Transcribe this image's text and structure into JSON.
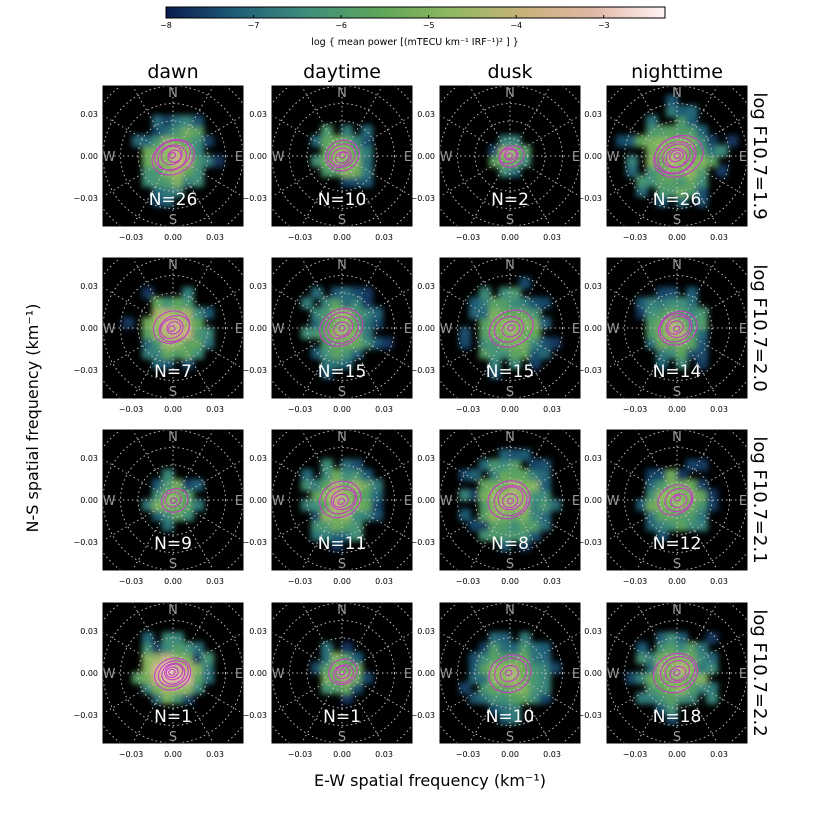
{
  "colorbar": {
    "label": "log { mean power [(mTECU km⁻¹ IRF⁻¹)² ] }",
    "min": -8,
    "max": -2.3,
    "ticks": [
      "−8",
      "−7",
      "−6",
      "−5",
      "−4",
      "−3"
    ],
    "tick_values": [
      -8,
      -7,
      -6,
      -5,
      -4,
      -3
    ],
    "colors": [
      "#0a1b4e",
      "#1f5f78",
      "#3f8f7c",
      "#5fa55a",
      "#8fb860",
      "#c8b27a",
      "#e2b7a6",
      "#fff4f4"
    ]
  },
  "columns": [
    "dawn",
    "daytime",
    "dusk",
    "nighttime"
  ],
  "rows": [
    "log F10.7=1.9",
    "log F10.7=2.0",
    "log F10.7=2.1",
    "log F10.7=2.2"
  ],
  "axes": {
    "xlabel": "E-W spatial frequency (km⁻¹)",
    "ylabel": "N-S spatial frequency (km⁻¹)",
    "xticks": [
      "−0.03",
      "0.00",
      "0.03"
    ],
    "yticks": [
      "0.03",
      "0.00",
      "−0.03"
    ],
    "compass": {
      "north": "N",
      "south": "S",
      "east": "E",
      "west": "W"
    }
  },
  "chart_data": {
    "type": "heatmap",
    "title": "",
    "xlabel": "E-W spatial frequency (km⁻¹)",
    "ylabel": "N-S spatial frequency (km⁻¹)",
    "xlim": [
      -0.05,
      0.05
    ],
    "ylim": [
      -0.05,
      0.05
    ],
    "contour_color": "#c040c0",
    "panels": [
      {
        "row": "log F10.7=1.9",
        "column": "dawn",
        "n_label": "N=26",
        "peak_log_power": -4.3,
        "spread": 0.022,
        "contours": 6
      },
      {
        "row": "log F10.7=1.9",
        "column": "daytime",
        "n_label": "N=10",
        "peak_log_power": -4.6,
        "spread": 0.018,
        "contours": 5
      },
      {
        "row": "log F10.7=1.9",
        "column": "dusk",
        "n_label": "N=2",
        "peak_log_power": -4.6,
        "spread": 0.012,
        "contours": 4
      },
      {
        "row": "log F10.7=1.9",
        "column": "nighttime",
        "n_label": "N=26",
        "peak_log_power": -4.4,
        "spread": 0.026,
        "contours": 7
      },
      {
        "row": "log F10.7=2.0",
        "column": "dawn",
        "n_label": "N=7",
        "peak_log_power": -3.8,
        "spread": 0.02,
        "contours": 5
      },
      {
        "row": "log F10.7=2.0",
        "column": "daytime",
        "n_label": "N=15",
        "peak_log_power": -4.8,
        "spread": 0.024,
        "contours": 5
      },
      {
        "row": "log F10.7=2.0",
        "column": "dusk",
        "n_label": "N=15",
        "peak_log_power": -4.8,
        "spread": 0.025,
        "contours": 4
      },
      {
        "row": "log F10.7=2.0",
        "column": "nighttime",
        "n_label": "N=14",
        "peak_log_power": -4.7,
        "spread": 0.022,
        "contours": 5
      },
      {
        "row": "log F10.7=2.1",
        "column": "dawn",
        "n_label": "N=9",
        "peak_log_power": -4.6,
        "spread": 0.016,
        "contours": 3
      },
      {
        "row": "log F10.7=2.1",
        "column": "daytime",
        "n_label": "N=11",
        "peak_log_power": -4.3,
        "spread": 0.022,
        "contours": 5
      },
      {
        "row": "log F10.7=2.1",
        "column": "dusk",
        "n_label": "N=8",
        "peak_log_power": -4.2,
        "spread": 0.024,
        "contours": 5
      },
      {
        "row": "log F10.7=2.1",
        "column": "nighttime",
        "n_label": "N=12",
        "peak_log_power": -4.5,
        "spread": 0.02,
        "contours": 4
      },
      {
        "row": "log F10.7=2.2",
        "column": "dawn",
        "n_label": "N=1",
        "peak_log_power": -3.0,
        "spread": 0.018,
        "contours": 6
      },
      {
        "row": "log F10.7=2.2",
        "column": "daytime",
        "n_label": "N=1",
        "peak_log_power": -4.6,
        "spread": 0.015,
        "contours": 4
      },
      {
        "row": "log F10.7=2.2",
        "column": "dusk",
        "n_label": "N=10",
        "peak_log_power": -4.9,
        "spread": 0.026,
        "contours": 4
      },
      {
        "row": "log F10.7=2.2",
        "column": "nighttime",
        "n_label": "N=18",
        "peak_log_power": -4.5,
        "spread": 0.024,
        "contours": 5
      }
    ]
  }
}
